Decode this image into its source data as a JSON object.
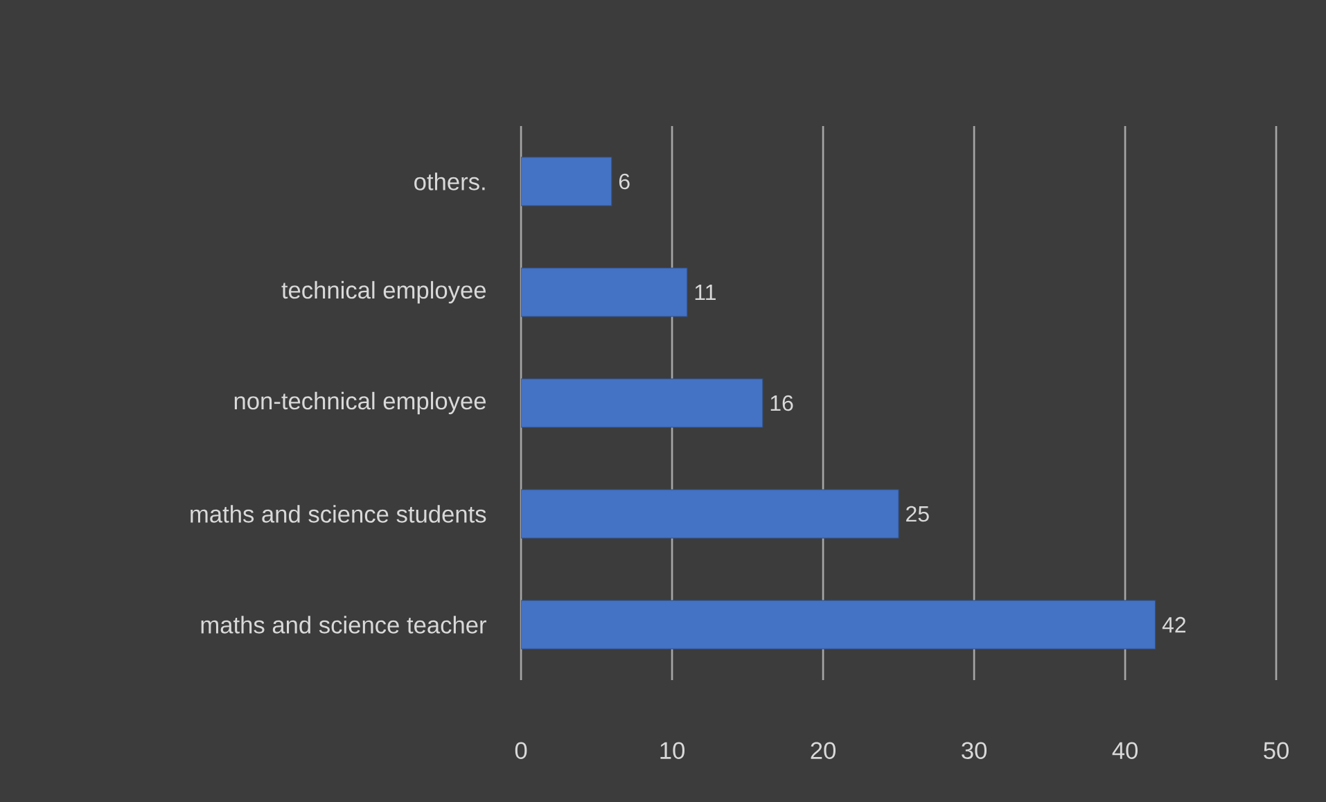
{
  "chart_data": {
    "type": "bar",
    "orientation": "horizontal",
    "categories": [
      "others.",
      "technical employee",
      "non-technical employee",
      "maths and science students",
      "maths and science teacher"
    ],
    "values": [
      6,
      11,
      16,
      25,
      42
    ],
    "color": "#4472c4",
    "xlim": [
      0,
      50
    ],
    "xticks": [
      0,
      10,
      20,
      30,
      40,
      50
    ],
    "grid": "x",
    "data_labels": true
  }
}
